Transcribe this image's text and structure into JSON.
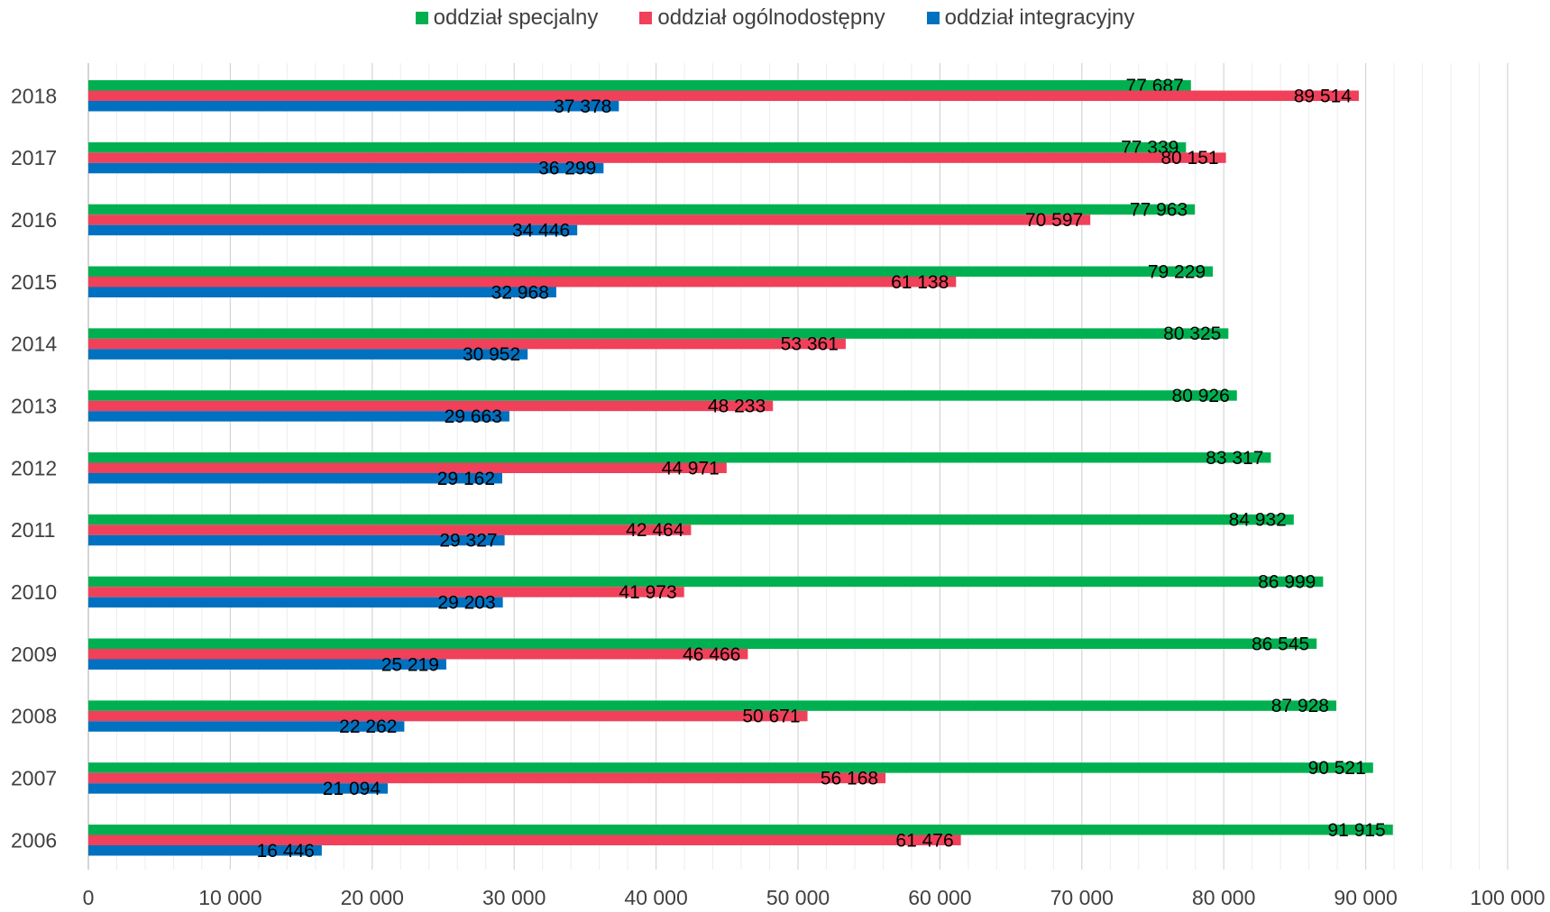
{
  "chart_data": {
    "type": "bar",
    "orientation": "horizontal",
    "categories": [
      "2018",
      "2017",
      "2016",
      "2015",
      "2014",
      "2013",
      "2012",
      "2011",
      "2010",
      "2009",
      "2008",
      "2007",
      "2006"
    ],
    "series": [
      {
        "name": "oddział specjalny",
        "color": "#00B050",
        "values": [
          77687,
          77339,
          77963,
          79229,
          80325,
          80926,
          83317,
          84932,
          86999,
          86545,
          87928,
          90521,
          91915
        ]
      },
      {
        "name": "oddział ogólnodostępny",
        "color": "#F0405A",
        "values": [
          89514,
          80151,
          70597,
          61138,
          53361,
          48233,
          44971,
          42464,
          41973,
          46466,
          50671,
          56168,
          61476
        ]
      },
      {
        "name": "oddział integracyjny",
        "color": "#0070C0",
        "values": [
          37378,
          36299,
          34446,
          32968,
          30952,
          29663,
          29162,
          29327,
          29203,
          25219,
          22262,
          21094,
          16446
        ]
      }
    ],
    "data_labels": [
      [
        "77 687",
        "77 339",
        "77 963",
        "79 229",
        "80 325",
        "80 926",
        "83 317",
        "84 932",
        "86 999",
        "86 545",
        "87 928",
        "90 521",
        "91 915"
      ],
      [
        "89 514",
        "80 151",
        "70 597",
        "61 138",
        "53 361",
        "48 233",
        "44 971",
        "42 464",
        "41 973",
        "46 466",
        "50 671",
        "56 168",
        "61 476"
      ],
      [
        "37 378",
        "36 299",
        "34 446",
        "32 968",
        "30 952",
        "29 663",
        "29 162",
        "29 327",
        "29 203",
        "25 219",
        "22 262",
        "21 094",
        "16 446"
      ]
    ],
    "x_ticks": [
      0,
      10000,
      20000,
      30000,
      40000,
      50000,
      60000,
      70000,
      80000,
      90000,
      100000
    ],
    "x_tick_labels": [
      "0",
      "10 000",
      "20 000",
      "30 000",
      "40 000",
      "50 000",
      "60 000",
      "70 000",
      "80 000",
      "90 000",
      "100 000"
    ],
    "xlim": [
      0,
      100000
    ],
    "minor_grid_step": 2000,
    "grid": true,
    "legend_position": "top-center",
    "title": "",
    "xlabel": "",
    "ylabel": ""
  }
}
